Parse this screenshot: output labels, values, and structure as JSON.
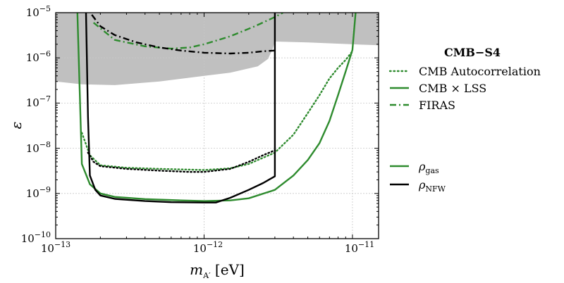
{
  "chart_data": {
    "type": "line",
    "xlabel": {
      "base": "m",
      "sub": "A′",
      "unit": " [eV]"
    },
    "ylabel": "ε",
    "xscale": "log",
    "yscale": "log",
    "xlim": [
      1e-13,
      1.5e-11
    ],
    "ylim": [
      1e-10,
      1e-05
    ],
    "grid": true,
    "x_ticks": [
      {
        "base": "10",
        "exp": "−13",
        "value": 1e-13
      },
      {
        "base": "10",
        "exp": "−12",
        "value": 1e-12
      },
      {
        "base": "10",
        "exp": "−11",
        "value": 1e-11
      }
    ],
    "y_ticks": [
      {
        "base": "10",
        "exp": "−10",
        "value": 1e-10
      },
      {
        "base": "10",
        "exp": "−9",
        "value": 1e-09
      },
      {
        "base": "10",
        "exp": "−8",
        "value": 1e-08
      },
      {
        "base": "10",
        "exp": "−7",
        "value": 1e-07
      },
      {
        "base": "10",
        "exp": "−6",
        "value": 1e-06
      },
      {
        "base": "10",
        "exp": "−5",
        "value": 1e-05
      }
    ],
    "excluded_region": {
      "color": "#c0c0c0",
      "lower_boundary": [
        [
          1e-13,
          3e-07
        ],
        [
          1.5e-13,
          2.6e-07
        ],
        [
          2.5e-13,
          2.5e-07
        ],
        [
          5e-13,
          3e-07
        ],
        [
          1e-12,
          4e-07
        ],
        [
          1.5e-12,
          4.7e-07
        ],
        [
          2.3e-12,
          6.5e-07
        ],
        [
          2.7e-12,
          9.5e-07
        ],
        [
          2.9e-12,
          1.6e-06
        ],
        [
          3e-12,
          2.3e-06
        ],
        [
          5e-12,
          2.2e-06
        ],
        [
          1e-11,
          2e-06
        ],
        [
          1.5e-11,
          1.9e-06
        ]
      ]
    },
    "legend": {
      "title": "CMB−S4",
      "placement": "right",
      "linestyles": [
        {
          "label": "CMB Autocorrelation",
          "style": "dotted"
        },
        {
          "label": "CMB × LSS",
          "style": "solid"
        },
        {
          "label": "FIRAS",
          "style": "dashdot"
        }
      ],
      "profiles": [
        {
          "label_base": "ρ",
          "label_sub": "gas",
          "color": "#2e8b2e"
        },
        {
          "label_base": "ρ",
          "label_sub": "NFW",
          "color": "#000000"
        }
      ]
    },
    "series": [
      {
        "profile": "gas",
        "method": "CMB × LSS",
        "style": "solid",
        "color": "#2e8b2e",
        "points": [
          [
            1.4e-13,
            1e-05
          ],
          [
            1.45e-13,
            2e-07
          ],
          [
            1.5e-13,
            4.5e-09
          ],
          [
            1.7e-13,
            1.6e-09
          ],
          [
            2e-13,
            1e-09
          ],
          [
            2.5e-13,
            8.4e-10
          ],
          [
            4e-13,
            7.5e-10
          ],
          [
            7e-13,
            7e-10
          ],
          [
            1e-12,
            6.8e-10
          ],
          [
            1.5e-12,
            7e-10
          ],
          [
            2e-12,
            7.8e-10
          ],
          [
            3e-12,
            1.2e-09
          ],
          [
            4e-12,
            2.5e-09
          ],
          [
            5e-12,
            5.5e-09
          ],
          [
            6e-12,
            1.3e-08
          ],
          [
            7e-12,
            4e-08
          ],
          [
            8e-12,
            1.5e-07
          ],
          [
            9e-12,
            5e-07
          ],
          [
            1e-11,
            1.5e-06
          ],
          [
            1.05e-11,
            1e-05
          ]
        ]
      },
      {
        "profile": "gas",
        "method": "CMB Autocorrelation",
        "style": "dotted",
        "color": "#2e8b2e",
        "points": [
          [
            1.5e-13,
            2.2e-08
          ],
          [
            1.7e-13,
            7e-09
          ],
          [
            2e-13,
            4.2e-09
          ],
          [
            3e-13,
            3.7e-09
          ],
          [
            5e-13,
            3.5e-09
          ],
          [
            1e-12,
            3.3e-09
          ],
          [
            1.5e-12,
            3.6e-09
          ],
          [
            2e-12,
            4.5e-09
          ],
          [
            3e-12,
            8e-09
          ],
          [
            4e-12,
            2e-08
          ],
          [
            5e-12,
            6e-08
          ],
          [
            6e-12,
            1.5e-07
          ],
          [
            7e-12,
            3.5e-07
          ],
          [
            8e-12,
            6e-07
          ],
          [
            9e-12,
            9e-07
          ],
          [
            1e-11,
            1.4e-06
          ]
        ]
      },
      {
        "profile": "gas",
        "method": "FIRAS",
        "style": "dashdot",
        "color": "#2e8b2e",
        "points": [
          [
            1.8e-13,
            6e-06
          ],
          [
            2.5e-13,
            2.5e-06
          ],
          [
            4e-13,
            1.8e-06
          ],
          [
            6e-13,
            1.6e-06
          ],
          [
            8e-13,
            1.7e-06
          ],
          [
            1e-12,
            2e-06
          ],
          [
            1.5e-12,
            3e-06
          ],
          [
            2.2e-12,
            5e-06
          ],
          [
            3e-12,
            8e-06
          ],
          [
            3.4e-12,
            1e-05
          ]
        ]
      },
      {
        "profile": "NFW",
        "method": "CMB × LSS",
        "style": "solid",
        "color": "#000000",
        "points": [
          [
            1.6e-13,
            1e-05
          ],
          [
            1.65e-13,
            5e-08
          ],
          [
            1.7e-13,
            2.5e-09
          ],
          [
            1.85e-13,
            1.2e-09
          ],
          [
            2e-13,
            9e-10
          ],
          [
            2.5e-13,
            7.6e-10
          ],
          [
            4e-13,
            6.8e-10
          ],
          [
            6e-13,
            6.4e-10
          ],
          [
            1e-12,
            6.3e-10
          ],
          [
            1.2e-12,
            6.3e-10
          ],
          [
            1.5e-12,
            8e-10
          ],
          [
            2e-12,
            1.2e-09
          ],
          [
            2.5e-12,
            1.7e-09
          ],
          [
            3e-12,
            2.4e-09
          ],
          [
            3e-12,
            1e-05
          ]
        ]
      },
      {
        "profile": "NFW",
        "method": "CMB Autocorrelation",
        "style": "dotted",
        "color": "#000000",
        "points": [
          [
            1.65e-13,
            8e-09
          ],
          [
            1.8e-13,
            5e-09
          ],
          [
            2e-13,
            4e-09
          ],
          [
            3e-13,
            3.5e-09
          ],
          [
            5e-13,
            3.2e-09
          ],
          [
            8e-13,
            3e-09
          ],
          [
            1e-12,
            3e-09
          ],
          [
            1.5e-12,
            3.5e-09
          ],
          [
            2e-12,
            5e-09
          ],
          [
            2.5e-12,
            7e-09
          ],
          [
            3e-12,
            9e-09
          ]
        ]
      },
      {
        "profile": "NFW",
        "method": "FIRAS",
        "style": "dashdot",
        "color": "#000000",
        "points": [
          [
            1.75e-13,
            9e-06
          ],
          [
            2e-13,
            5e-06
          ],
          [
            2.5e-13,
            3.2e-06
          ],
          [
            3.5e-13,
            2.2e-06
          ],
          [
            5e-13,
            1.7e-06
          ],
          [
            7e-13,
            1.45e-06
          ],
          [
            1e-12,
            1.3e-06
          ],
          [
            1.5e-12,
            1.25e-06
          ],
          [
            2e-12,
            1.3e-06
          ],
          [
            2.5e-12,
            1.4e-06
          ],
          [
            3e-12,
            1.45e-06
          ]
        ]
      }
    ]
  }
}
